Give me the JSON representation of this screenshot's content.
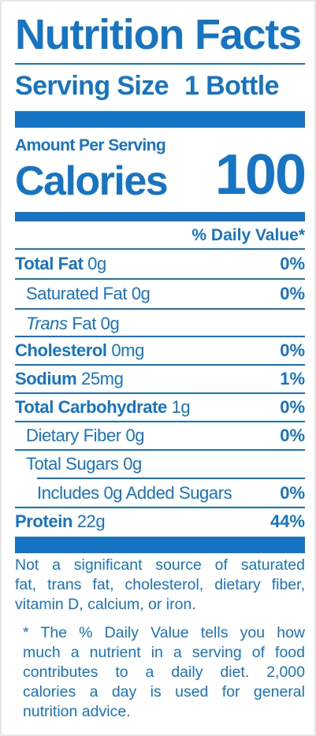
{
  "label": {
    "title": "Nutrition Facts",
    "serving_size_label": "Serving Size",
    "serving_size_value": "1 Bottle",
    "amount_per_serving": "Amount Per Serving",
    "calories_label": "Calories",
    "calories_value": "100",
    "daily_value_header": "% Daily Value*",
    "nutrients": [
      {
        "name": "Total Fat",
        "amount": "0g",
        "dv": "0%"
      },
      {
        "name": "Saturated Fat",
        "amount": "0g",
        "dv": "0%"
      },
      {
        "name_italic": "Trans",
        "name": "Fat",
        "amount": "0g",
        "dv": ""
      },
      {
        "name": "Cholesterol",
        "amount": "0mg",
        "dv": "0%"
      },
      {
        "name": "Sodium",
        "amount": "25mg",
        "dv": "1%"
      },
      {
        "name": "Total Carbohydrate",
        "amount": "1g",
        "dv": "0%"
      },
      {
        "name": "Dietary Fiber",
        "amount": "0g",
        "dv": "0%"
      },
      {
        "name": "Total Sugars",
        "amount": "0g",
        "dv": ""
      },
      {
        "name": "Includes 0g Added Sugars",
        "amount": "",
        "dv": "0%"
      },
      {
        "name": "Protein",
        "amount": "22g",
        "dv": "44%"
      }
    ],
    "footnote_lines": [
      "Not a significant source of saturated",
      "fat, trans fat, cholesterol, dietary fiber,",
      "vitamin D, calcium, or iron."
    ],
    "dv_note_lines": [
      "* The % Daily Value tells you how",
      "much a nutrient in a serving of food",
      "contributes to a daily diet. 2,000",
      "calories a day is used for general",
      "nutrition advice."
    ],
    "brand_color": "#1575c4"
  }
}
